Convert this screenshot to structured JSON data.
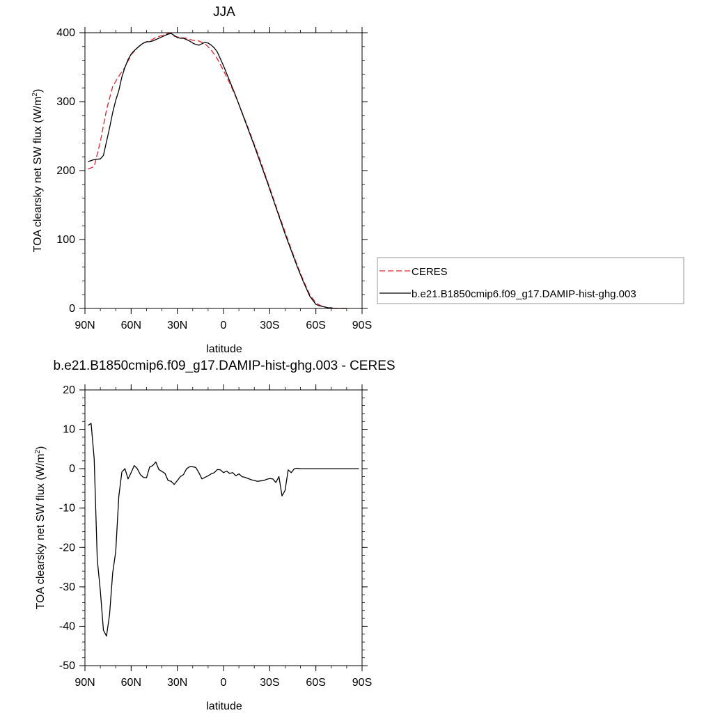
{
  "chart_data": [
    {
      "type": "line",
      "title": "JJA",
      "xlabel": "latitude",
      "ylabel": "TOA clearsky net SW flux (W/m",
      "ylabel_sup": "2",
      "ylabel_close": ")",
      "xlim": [
        90,
        -90
      ],
      "ylim": [
        0,
        400
      ],
      "x_ticks": [
        90,
        60,
        30,
        0,
        -30,
        -60,
        -90
      ],
      "x_tick_labels": [
        "90N",
        "60N",
        "30N",
        "0",
        "30S",
        "60S",
        "90S"
      ],
      "y_ticks": [
        0,
        100,
        200,
        300,
        400
      ],
      "y_tick_labels": [
        "0",
        "100",
        "200",
        "300",
        "400"
      ],
      "legend_position": "right",
      "series": [
        {
          "name": "CERES",
          "color": "#e8202a",
          "dash": "dashed",
          "x": [
            88,
            84,
            80,
            76,
            72,
            68,
            64,
            60,
            56,
            52,
            48,
            44,
            40,
            36,
            34,
            32,
            28,
            24,
            20,
            16,
            12,
            8,
            4,
            0,
            -4,
            -8,
            -12,
            -16,
            -20,
            -24,
            -28,
            -32,
            -36,
            -40,
            -44,
            -48,
            -52,
            -56,
            -60,
            -64,
            -68,
            -72,
            -76,
            -80
          ],
          "y": [
            202,
            206,
            242,
            288,
            322,
            337,
            350,
            368,
            378,
            385,
            388,
            393,
            396,
            399,
            399,
            395,
            393,
            392,
            389,
            388,
            384,
            375,
            362,
            345,
            327,
            307,
            285,
            262,
            238,
            214,
            188,
            162,
            136,
            111,
            86,
            62,
            40,
            20,
            8,
            3,
            1,
            0,
            0,
            0
          ]
        },
        {
          "name": "b.e21.B1850cmip6.f09_g17.DAMIP-hist-ghg.003",
          "color": "#000000",
          "dash": "solid",
          "x": [
            88,
            84,
            80,
            78,
            76,
            74,
            72,
            70,
            68,
            66,
            64,
            62,
            60,
            58,
            56,
            54,
            52,
            50,
            48,
            46,
            44,
            42,
            40,
            38,
            36,
            34,
            32,
            30,
            28,
            26,
            24,
            22,
            20,
            18,
            16,
            14,
            12,
            10,
            8,
            6,
            4,
            2,
            0,
            -4,
            -8,
            -12,
            -16,
            -20,
            -24,
            -28,
            -32,
            -36,
            -40,
            -44,
            -48,
            -52,
            -56,
            -60,
            -62,
            -64,
            -66,
            -68,
            -70,
            -72,
            -76,
            -80
          ],
          "y": [
            213,
            216,
            217,
            222,
            242,
            262,
            284,
            302,
            316,
            336,
            350,
            361,
            369,
            374,
            378,
            382,
            385,
            387,
            387,
            388,
            390,
            392,
            394,
            396,
            398,
            399,
            396,
            393,
            392,
            392,
            390,
            388,
            385,
            383,
            382,
            384,
            386,
            385,
            382,
            378,
            372,
            362,
            352,
            330,
            308,
            284,
            260,
            236,
            211,
            186,
            160,
            134,
            108,
            84,
            60,
            38,
            18,
            6,
            4,
            3,
            2,
            1,
            1,
            0,
            0,
            0
          ]
        }
      ]
    },
    {
      "type": "line",
      "title": "b.e21.B1850cmip6.f09_g17.DAMIP-hist-ghg.003 - CERES",
      "xlabel": "latitude",
      "ylabel": "TOA clearsky net SW flux (W/m",
      "ylabel_sup": "2",
      "ylabel_close": ")",
      "xlim": [
        90,
        -90
      ],
      "ylim": [
        -50,
        20
      ],
      "x_ticks": [
        90,
        60,
        30,
        0,
        -30,
        -60,
        -90
      ],
      "x_tick_labels": [
        "90N",
        "60N",
        "30N",
        "0",
        "30S",
        "60S",
        "90S"
      ],
      "y_ticks": [
        -50,
        -40,
        -30,
        -20,
        -10,
        0,
        10,
        20
      ],
      "y_tick_labels": [
        "-50",
        "-40",
        "-30",
        "-20",
        "-10",
        "0",
        "10",
        "20"
      ],
      "series": [
        {
          "color": "#000000",
          "dash": "solid",
          "x": [
            88,
            86,
            84,
            82,
            80,
            78,
            76,
            74,
            72,
            70,
            68,
            66,
            64,
            62,
            60,
            58,
            56,
            54,
            52,
            50,
            48,
            46,
            44,
            42,
            40,
            38,
            36,
            34,
            32,
            30,
            28,
            26,
            24,
            22,
            20,
            18,
            16,
            14,
            12,
            10,
            8,
            6,
            4,
            2,
            0,
            -2,
            -4,
            -6,
            -8,
            -10,
            -12,
            -14,
            -16,
            -18,
            -20,
            -22,
            -24,
            -26,
            -28,
            -30,
            -32,
            -34,
            -36,
            -38,
            -40,
            -42,
            -44,
            -46,
            -48,
            -50,
            -52,
            -54,
            -56,
            -58,
            -60,
            -62,
            -64,
            -66,
            -68,
            -70,
            -72,
            -74,
            -76,
            -78,
            -80,
            -82,
            -84,
            -86,
            -88
          ],
          "y": [
            11,
            11.5,
            2.5,
            -23,
            -31,
            -41,
            -42.5,
            -37,
            -26.5,
            -21,
            -7,
            -0.8,
            0,
            -2.6,
            -1,
            0.8,
            0,
            -1.5,
            -2.2,
            -2.3,
            0.4,
            0.8,
            1.7,
            -0.2,
            -0.7,
            -1.2,
            -3,
            -3.2,
            -4,
            -3,
            -2,
            -1.5,
            0,
            0.5,
            0.5,
            0.3,
            -1,
            -2.6,
            -2.2,
            -1.8,
            -1.3,
            -1,
            -0.2,
            -0.3,
            -1,
            -0.6,
            -1.2,
            -1,
            -1.8,
            -1.3,
            -2,
            -2.2,
            -2.5,
            -2.8,
            -3,
            -3.2,
            -3.1,
            -3,
            -2.7,
            -2.5,
            -2.6,
            -3.5,
            -2,
            -6.9,
            -5.5,
            -0.3,
            -1,
            0,
            0.1,
            0,
            0,
            0,
            0,
            0,
            0,
            0,
            0,
            0,
            0,
            0,
            0,
            0,
            0,
            0,
            0,
            0,
            0,
            0,
            0
          ]
        }
      ]
    }
  ]
}
